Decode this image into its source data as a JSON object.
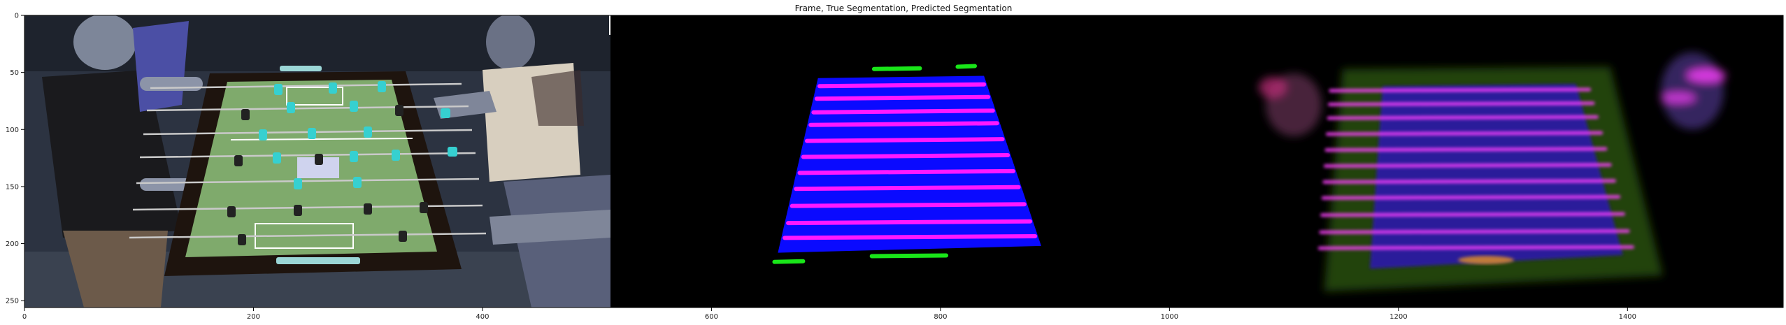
{
  "chart_data": {
    "type": "image",
    "title": "Frame, True Segmentation, Predicted Segmentation",
    "xlabel": "",
    "ylabel": "",
    "xlim": [
      0,
      1536
    ],
    "ylim": [
      256,
      0
    ],
    "x_ticks": [
      0,
      200,
      400,
      600,
      800,
      1000,
      1200,
      1400
    ],
    "y_ticks": [
      0,
      50,
      100,
      150,
      200,
      250
    ],
    "panels": [
      {
        "name": "Frame",
        "x_range": [
          0,
          512
        ]
      },
      {
        "name": "True Segmentation",
        "x_range": [
          512,
          1024
        ]
      },
      {
        "name": "Predicted Segmentation",
        "x_range": [
          1024,
          1536
        ]
      }
    ],
    "true_segmentation": {
      "table_polygon": [
        [
          693,
          55
        ],
        [
          838,
          53
        ],
        [
          888,
          202
        ],
        [
          658,
          208
        ]
      ],
      "rods_y": [
        62,
        73,
        85,
        96,
        110,
        124,
        138,
        152,
        167,
        182,
        195
      ],
      "side_marks": [
        {
          "x1": 742,
          "x2": 782,
          "y": 47
        },
        {
          "x1": 815,
          "x2": 830,
          "y": 45
        },
        {
          "x1": 655,
          "x2": 680,
          "y": 216
        },
        {
          "x1": 740,
          "x2": 805,
          "y": 211
        }
      ],
      "colors": {
        "table": "#0a0aff",
        "rods": "#ff18ff",
        "marks": "#19e619",
        "background": "#000000"
      }
    },
    "predicted_segmentation": {
      "table_polygon": [
        [
          1186,
          62
        ],
        [
          1355,
          60
        ],
        [
          1396,
          210
        ],
        [
          1175,
          222
        ]
      ],
      "rods_y": [
        66,
        78,
        90,
        104,
        118,
        132,
        146,
        160,
        175,
        190,
        204
      ],
      "colors": {
        "table": "#2a1a9a",
        "rods": "#ff40ff",
        "glow": "#3a6a1a"
      }
    }
  }
}
